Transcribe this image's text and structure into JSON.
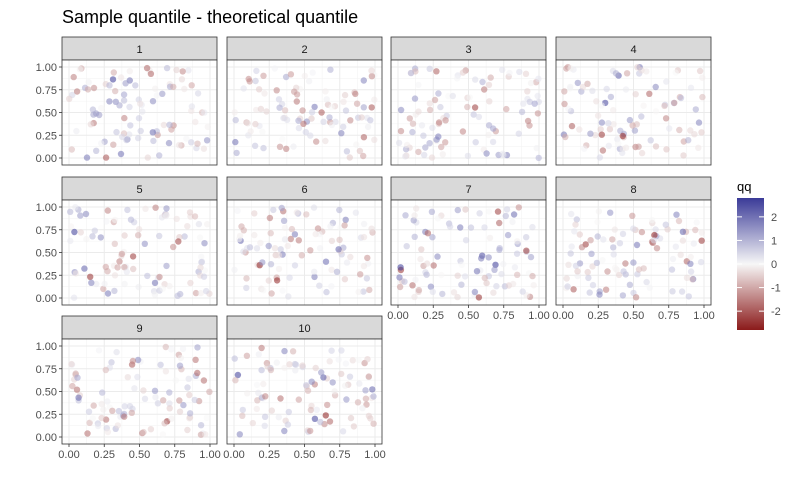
{
  "chart_data": {
    "type": "scatter",
    "title": "Sample quantile - theoretical quantile",
    "xlabel": "",
    "ylabel": "",
    "xlim": [
      0,
      1
    ],
    "ylim": [
      0,
      1
    ],
    "x_ticks": [
      0,
      0.25,
      0.5,
      0.75,
      1
    ],
    "x_tick_labels": [
      "0.00",
      "0.25",
      "0.50",
      "0.75",
      "1.00"
    ],
    "y_ticks": [
      0,
      0.25,
      0.5,
      0.75,
      1
    ],
    "y_tick_labels": [
      "0.00",
      "0.25",
      "0.50",
      "0.75",
      "1.00"
    ],
    "facet_labels": [
      "1",
      "2",
      "3",
      "4",
      "5",
      "6",
      "7",
      "8",
      "9",
      "10"
    ],
    "points_per_panel": 100,
    "point_note": "100 uniform random (x, y) points per panel, each coloured by its qq value",
    "color_scale": {
      "name": "qq",
      "low_color": "#8b1a1a",
      "mid_color": "#f7f7f7",
      "high_color": "#3b3b98",
      "limits": [
        -2.8,
        2.8
      ],
      "breaks": [
        2,
        1,
        0,
        -1,
        -2
      ],
      "break_labels": [
        "2",
        "1",
        "0",
        "-1",
        "-2"
      ]
    },
    "point_alpha": 0.55
  }
}
